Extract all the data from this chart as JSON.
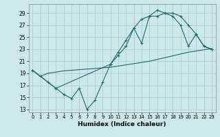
{
  "xlabel": "Humidex (Indice chaleur)",
  "background_color": "#cce8e8",
  "grid_color": "#aacccc",
  "line_color": "#1a6b6b",
  "xlim": [
    -0.5,
    23.5
  ],
  "ylim": [
    12.5,
    30.5
  ],
  "xticks": [
    0,
    1,
    2,
    3,
    4,
    5,
    6,
    7,
    8,
    9,
    10,
    11,
    12,
    13,
    14,
    15,
    16,
    17,
    18,
    19,
    20,
    21,
    22,
    23
  ],
  "yticks": [
    13,
    15,
    17,
    19,
    21,
    23,
    25,
    27,
    29
  ],
  "line1_x": [
    0,
    1,
    2,
    3,
    4,
    5,
    6,
    7,
    8,
    9,
    10,
    11,
    12,
    13,
    14,
    15,
    16,
    17,
    18,
    19,
    20,
    21,
    22,
    23
  ],
  "line1_y": [
    19.5,
    18.5,
    17.5,
    16.5,
    15.5,
    14.8,
    16.5,
    13.0,
    14.5,
    17.5,
    20.5,
    22.0,
    23.5,
    26.5,
    28.0,
    28.5,
    28.5,
    29.0,
    28.5,
    27.0,
    23.5,
    25.5,
    23.5,
    23.0
  ],
  "line2_x": [
    0,
    1,
    2,
    3,
    4,
    5,
    6,
    7,
    8,
    9,
    10,
    11,
    12,
    13,
    14,
    15,
    16,
    17,
    18,
    19,
    20,
    21,
    22,
    23
  ],
  "line2_y": [
    19.5,
    18.5,
    19.0,
    19.2,
    19.4,
    19.5,
    19.6,
    19.7,
    19.8,
    19.9,
    20.0,
    20.2,
    20.4,
    20.6,
    20.8,
    21.0,
    21.3,
    21.6,
    21.9,
    22.2,
    22.5,
    22.7,
    22.9,
    23.1
  ],
  "line3_x": [
    0,
    3,
    10,
    11,
    12,
    13,
    14,
    15,
    16,
    17,
    18,
    19,
    20,
    21,
    22,
    23
  ],
  "line3_y": [
    19.5,
    16.5,
    20.5,
    22.5,
    24.5,
    26.5,
    24.0,
    28.5,
    29.5,
    29.0,
    29.0,
    28.5,
    27.0,
    25.5,
    23.5,
    23.0
  ]
}
